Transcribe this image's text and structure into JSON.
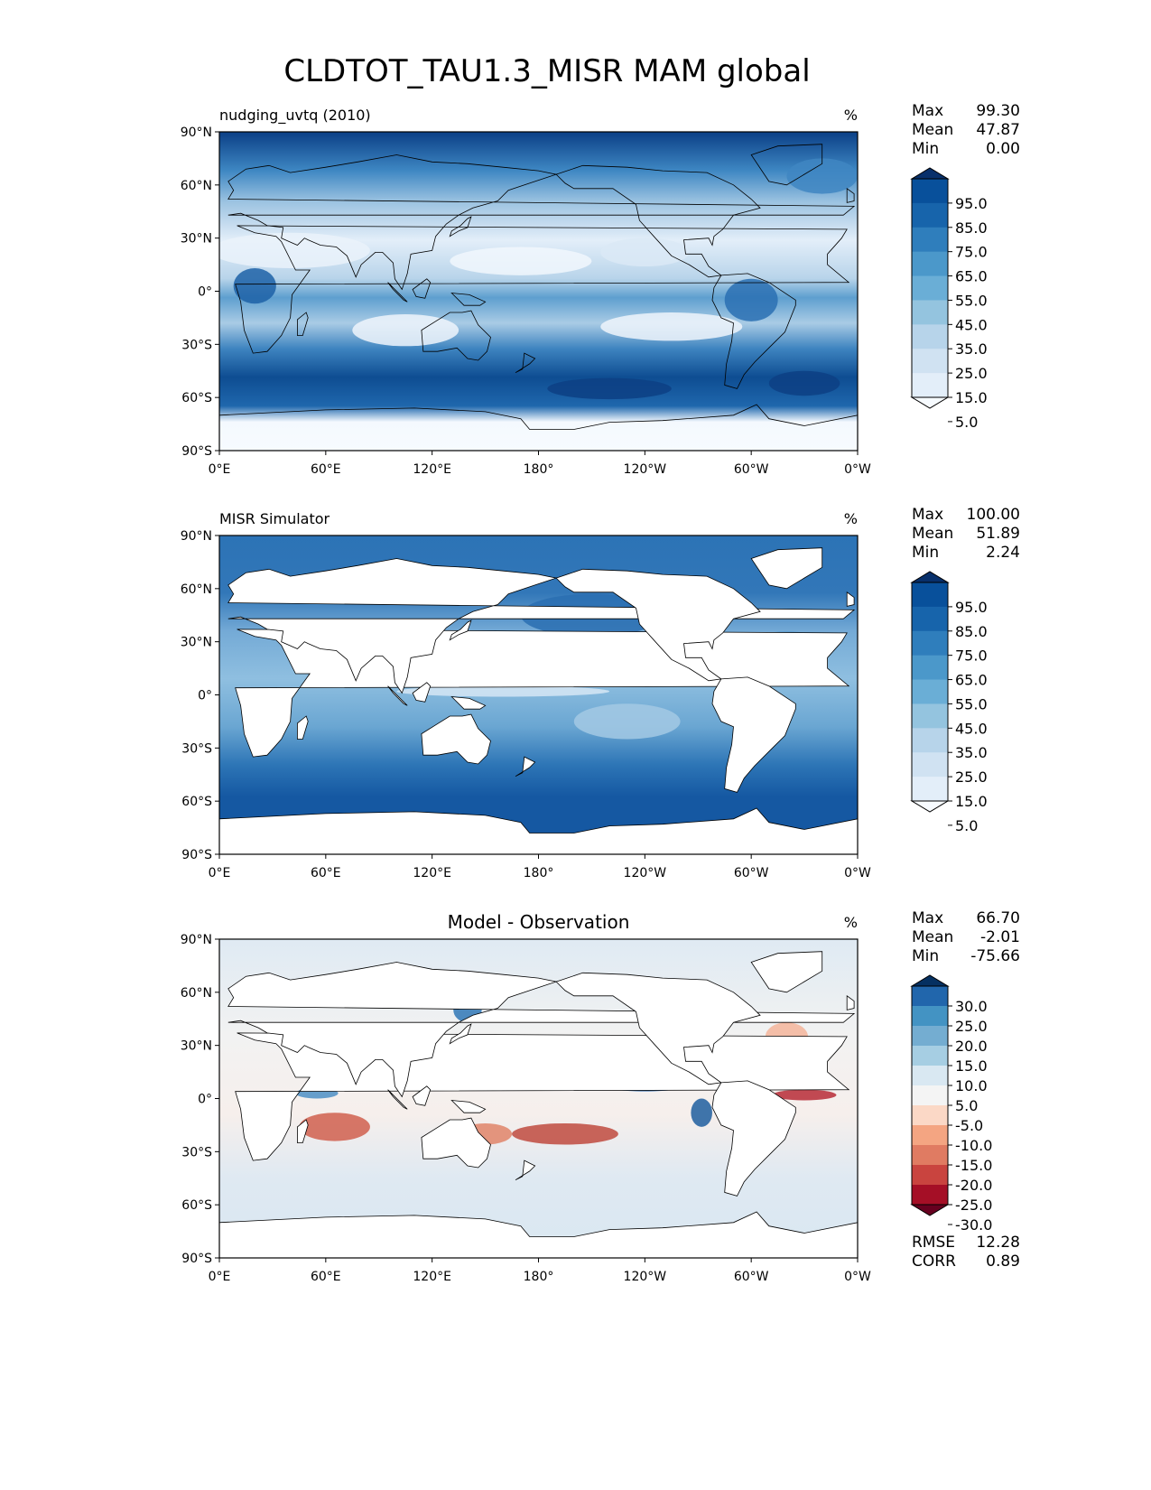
{
  "figure_title": "CLDTOT_TAU1.3_MISR MAM global",
  "lat_ticks": [
    "90°N",
    "60°N",
    "30°N",
    "0°",
    "30°S",
    "60°S",
    "90°S"
  ],
  "lon_ticks": [
    "0°E",
    "60°E",
    "120°E",
    "180°",
    "120°W",
    "60°W",
    "0°W"
  ],
  "panels": [
    {
      "id": "model",
      "title_left": "nudging_uvtq (2010)",
      "title_center": "",
      "units": "%",
      "stats": [
        {
          "label": "Max",
          "value": "99.30"
        },
        {
          "label": "Mean",
          "value": "47.87"
        },
        {
          "label": "Min",
          "value": "0.00"
        }
      ],
      "colorbar_labels": [
        "95.0",
        "85.0",
        "75.0",
        "65.0",
        "55.0",
        "45.0",
        "35.0",
        "25.0",
        "15.0",
        "5.0"
      ],
      "colorbar_colors": [
        "#08306b",
        "#08509b",
        "#1764ab",
        "#2f7ebc",
        "#4b98ca",
        "#6aaed6",
        "#94c4df",
        "#b7d4ea",
        "#d0e2f2",
        "#e3eef9",
        "#f7fbff"
      ],
      "footer_stats": []
    },
    {
      "id": "obs",
      "title_left": "MISR Simulator",
      "title_center": "",
      "units": "%",
      "stats": [
        {
          "label": "Max",
          "value": "100.00"
        },
        {
          "label": "Mean",
          "value": "51.89"
        },
        {
          "label": "Min",
          "value": "2.24"
        }
      ],
      "colorbar_labels": [
        "95.0",
        "85.0",
        "75.0",
        "65.0",
        "55.0",
        "45.0",
        "35.0",
        "25.0",
        "15.0",
        "5.0"
      ],
      "colorbar_colors": [
        "#08306b",
        "#08509b",
        "#1764ab",
        "#2f7ebc",
        "#4b98ca",
        "#6aaed6",
        "#94c4df",
        "#b7d4ea",
        "#d0e2f2",
        "#e3eef9",
        "#f7fbff"
      ],
      "footer_stats": []
    },
    {
      "id": "diff",
      "title_left": "",
      "title_center": "Model - Observation",
      "units": "%",
      "stats": [
        {
          "label": "Max",
          "value": "66.70"
        },
        {
          "label": "Mean",
          "value": "-2.01"
        },
        {
          "label": "Min",
          "value": "-75.66"
        }
      ],
      "colorbar_labels": [
        "30.0",
        "25.0",
        "20.0",
        "15.0",
        "10.0",
        "5.0",
        "-5.0",
        "-10.0",
        "-15.0",
        "-20.0",
        "-25.0",
        "-30.0"
      ],
      "colorbar_colors": [
        "#053061",
        "#2166ac",
        "#4393c3",
        "#74add1",
        "#a6cee3",
        "#d9e8f2",
        "#f4f4f4",
        "#fbd8c6",
        "#f4a582",
        "#e07b62",
        "#c9443f",
        "#a50f26",
        "#67001f"
      ],
      "footer_stats": [
        {
          "label": "RMSE",
          "value": "12.28"
        },
        {
          "label": "CORR",
          "value": "0.89"
        }
      ]
    }
  ]
}
